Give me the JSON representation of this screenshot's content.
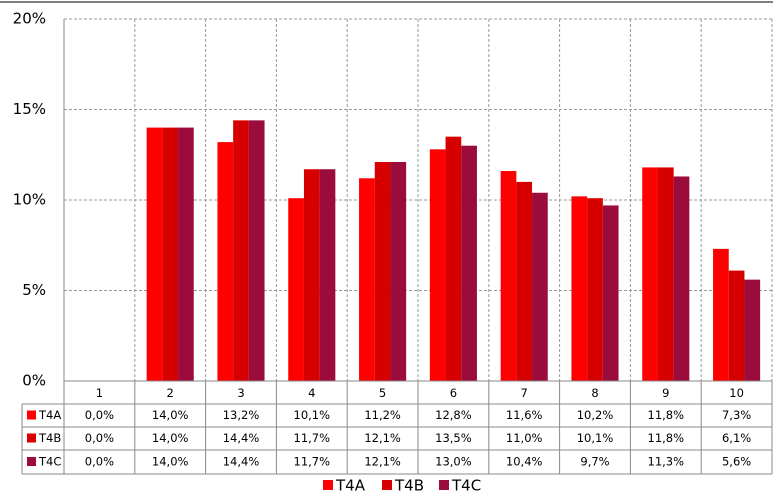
{
  "chart_data": {
    "type": "bar",
    "categories": [
      "1",
      "2",
      "3",
      "4",
      "5",
      "6",
      "7",
      "8",
      "9",
      "10"
    ],
    "series": [
      {
        "name": "T4A",
        "color": "#ff0000",
        "values": [
          0.0,
          14.0,
          13.2,
          10.1,
          11.2,
          12.8,
          11.6,
          10.2,
          11.8,
          7.3
        ],
        "value_labels": [
          "0,0%",
          "14,0%",
          "13,2%",
          "10,1%",
          "11,2%",
          "12,8%",
          "11,6%",
          "10,2%",
          "11,8%",
          "7,3%"
        ]
      },
      {
        "name": "T4B",
        "color": "#d60000",
        "values": [
          0.0,
          14.0,
          14.4,
          11.7,
          12.1,
          13.5,
          11.0,
          10.1,
          11.8,
          6.1
        ],
        "value_labels": [
          "0,0%",
          "14,0%",
          "14,4%",
          "11,7%",
          "12,1%",
          "13,5%",
          "11,0%",
          "10,1%",
          "11,8%",
          "6,1%"
        ]
      },
      {
        "name": "T4C",
        "color": "#9b0c3c",
        "values": [
          0.0,
          14.0,
          14.4,
          11.7,
          12.1,
          13.0,
          10.4,
          9.7,
          11.3,
          5.6
        ],
        "value_labels": [
          "0,0%",
          "14,0%",
          "14,4%",
          "11,7%",
          "12,1%",
          "13,0%",
          "10,4%",
          "9,7%",
          "11,3%",
          "5,6%"
        ]
      }
    ],
    "ylim": [
      0,
      20
    ],
    "yticks": [
      {
        "value": 0,
        "label": "0%"
      },
      {
        "value": 5,
        "label": "5%"
      },
      {
        "value": 10,
        "label": "10%"
      },
      {
        "value": 15,
        "label": "15%"
      },
      {
        "value": 20,
        "label": "20%"
      }
    ],
    "grid": true,
    "legend": "bottom"
  }
}
